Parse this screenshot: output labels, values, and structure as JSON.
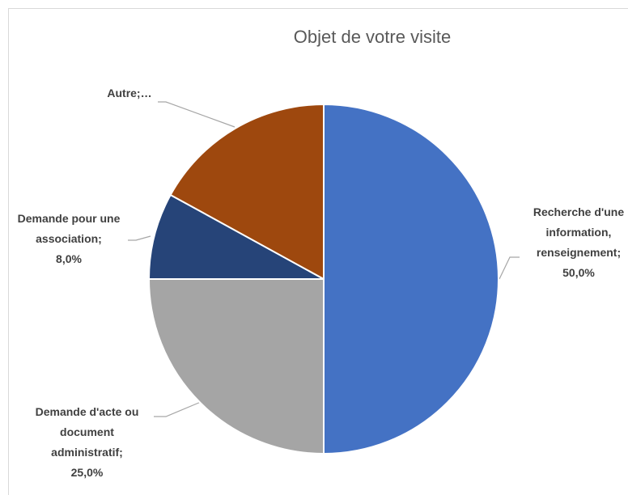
{
  "chart_data": {
    "type": "pie",
    "title": "Objet de votre visite",
    "categories": [
      "Recherche d'une information, renseignement;",
      "Demande d'acte ou document administratif;",
      "Demande pour une association;",
      "Autre;…"
    ],
    "values": [
      50,
      25,
      8,
      17
    ],
    "value_labels": [
      "50,0%",
      "25,0%",
      "8,0%",
      null
    ],
    "colors": [
      "#4472c4",
      "#a5a5a5",
      "#264478",
      "#9e480e"
    ]
  }
}
